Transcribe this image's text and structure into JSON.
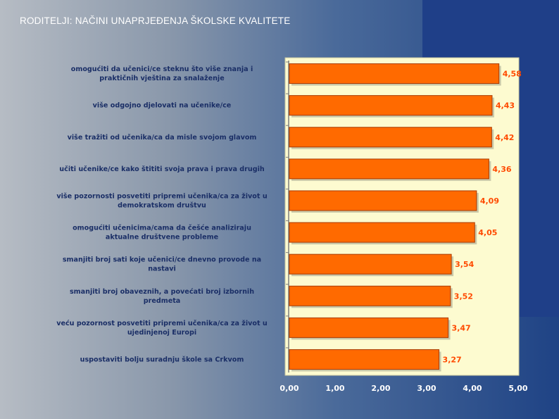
{
  "slide": {
    "title": "RODITELJI: NAČINI UNAPRJEĐENJA ŠKOLSKE KVALITETE"
  },
  "colors": {
    "bar_fill": "#ff6a00",
    "bar_stroke": "#a83a00",
    "plot_background": "#fdfbd0",
    "category_text": "#1a2e66",
    "value_text": "#ff4a00",
    "tick_text": "#ffffff"
  },
  "chart_data": {
    "type": "bar",
    "orientation": "horizontal",
    "title": "",
    "xlabel": "",
    "ylabel": "",
    "xlim": [
      0,
      5
    ],
    "grid": false,
    "legend": "none",
    "categories": [
      [
        "omogućiti da učenici/ce steknu što više znanja i",
        "praktičnih vještina za snalaženje"
      ],
      [
        "više odgojno djelovati na učenike/ce"
      ],
      [
        "više tražiti od učenika/ca da misle svojom glavom"
      ],
      [
        "učiti učenike/ce kako štititi svoja prava i prava drugih"
      ],
      [
        "više pozornosti posvetiti pripremi učenika/ca za život u",
        "demokratskom društvu"
      ],
      [
        "omogućiti učenicima/cama da češće analiziraju",
        "aktualne društvene probleme"
      ],
      [
        "smanjiti broj sati koje učenici/ce dnevno provode na",
        "nastavi"
      ],
      [
        "smanjiti broj obaveznih, a povećati broj izbornih",
        "predmeta"
      ],
      [
        "veću pozornost posvetiti pripremi učenika/ca za život u",
        "ujedinjenoj Europi"
      ],
      [
        "uspostaviti bolju suradnju škole sa Crkvom"
      ]
    ],
    "values": [
      4.58,
      4.43,
      4.42,
      4.36,
      4.09,
      4.05,
      3.54,
      3.52,
      3.47,
      3.27
    ],
    "value_labels": [
      "4,58",
      "4,43",
      "4,42",
      "4,36",
      "4,09",
      "4,05",
      "3,54",
      "3,52",
      "3,47",
      "3,27"
    ],
    "tick_labels": [
      "0,00",
      "1,00",
      "2,00",
      "3,00",
      "4,00",
      "5,00"
    ],
    "ticks": [
      0,
      1,
      2,
      3,
      4,
      5
    ]
  }
}
